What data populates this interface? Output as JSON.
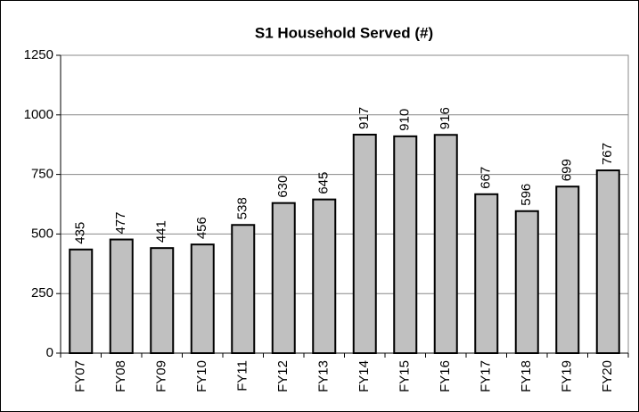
{
  "chart_data": {
    "type": "bar",
    "title": "S1 Household Served (#)",
    "categories": [
      "FY07",
      "FY08",
      "FY09",
      "FY10",
      "FY11",
      "FY12",
      "FY13",
      "FY14",
      "FY15",
      "FY16",
      "FY17",
      "FY18",
      "FY19",
      "FY20"
    ],
    "values": [
      435,
      477,
      441,
      456,
      538,
      630,
      645,
      917,
      910,
      916,
      667,
      596,
      699,
      767
    ],
    "color": "#c0c0c0",
    "ylim": [
      0,
      1250
    ],
    "yticks": [
      0,
      250,
      500,
      750,
      1000,
      1250
    ],
    "grid": true
  }
}
